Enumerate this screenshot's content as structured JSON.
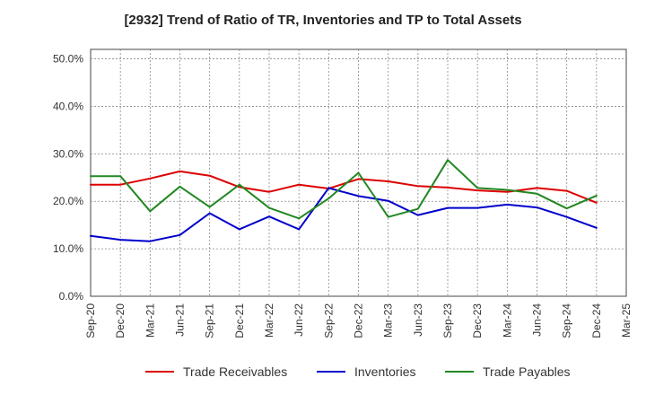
{
  "chart_data": {
    "type": "line",
    "title": "[2932]  Trend of Ratio of TR, Inventories and TP to Total Assets",
    "xlabel": "",
    "ylabel": "",
    "ylim": [
      0,
      52
    ],
    "y_ticks": [
      0,
      10,
      20,
      30,
      40,
      50
    ],
    "y_tick_labels": [
      "0.0%",
      "10.0%",
      "20.0%",
      "30.0%",
      "40.0%",
      "50.0%"
    ],
    "x_tick_labels": [
      "Sep-20",
      "Dec-20",
      "Mar-21",
      "Jun-21",
      "Sep-21",
      "Dec-21",
      "Mar-22",
      "Jun-22",
      "Sep-22",
      "Dec-22",
      "Mar-23",
      "Jun-23",
      "Sep-23",
      "Dec-23",
      "Mar-24",
      "Jun-24",
      "Sep-24",
      "Dec-24",
      "Mar-25"
    ],
    "x": [
      "Sep-20",
      "Dec-20",
      "Mar-21",
      "Jun-21",
      "Sep-21",
      "Dec-21",
      "Mar-22",
      "Jun-22",
      "Sep-22",
      "Dec-22",
      "Mar-23",
      "Jun-23",
      "Sep-23",
      "Dec-23",
      "Mar-24",
      "Jun-24",
      "Sep-24",
      "Dec-24"
    ],
    "grid": true,
    "legend_position": "bottom",
    "series": [
      {
        "name": "Trade Receivables",
        "color": "#dd0000",
        "values": [
          23.5,
          23.5,
          24.8,
          26.3,
          25.4,
          23.0,
          22.0,
          23.5,
          22.7,
          24.7,
          24.2,
          23.2,
          22.9,
          22.3,
          22.0,
          22.8,
          22.2,
          19.7
        ]
      },
      {
        "name": "Inventories",
        "color": "#0000cc",
        "values": [
          12.7,
          11.9,
          11.6,
          12.9,
          17.5,
          14.1,
          16.8,
          14.1,
          22.8,
          21.1,
          20.1,
          17.1,
          18.6,
          18.6,
          19.3,
          18.7,
          16.7,
          14.4
        ]
      },
      {
        "name": "Trade Payables",
        "color": "#228822",
        "values": [
          25.3,
          25.3,
          17.9,
          23.1,
          18.8,
          23.5,
          18.6,
          16.4,
          20.6,
          26.0,
          16.7,
          18.4,
          28.7,
          22.8,
          22.4,
          21.6,
          18.5,
          21.2
        ]
      }
    ]
  }
}
